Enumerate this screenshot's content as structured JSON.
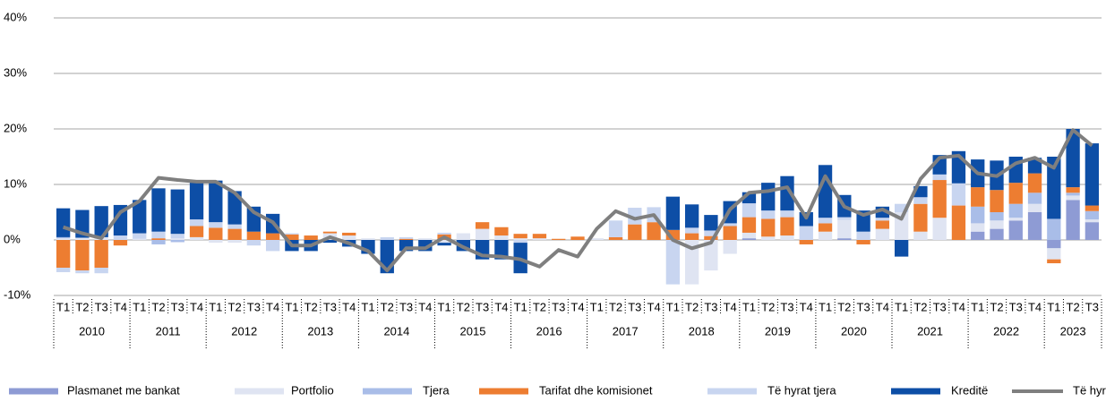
{
  "chart_data": {
    "type": "stacked_bar_line",
    "years": [
      "2010",
      "2011",
      "2012",
      "2013",
      "2014",
      "2015",
      "2016",
      "2017",
      "2018",
      "2019",
      "2020",
      "2021",
      "2022",
      "2023"
    ],
    "categories": [
      "T1",
      "T2",
      "T3",
      "T4",
      "T1",
      "T2",
      "T3",
      "T4",
      "T1",
      "T2",
      "T3",
      "T4",
      "T1",
      "T2",
      "T3",
      "T4",
      "T1",
      "T2",
      "T3",
      "T4",
      "T1",
      "T2",
      "T3",
      "T4",
      "T1",
      "T2",
      "T3",
      "T4",
      "T1",
      "T2",
      "T3",
      "T4",
      "T1",
      "T2",
      "T3",
      "T4",
      "T1",
      "T2",
      "T3",
      "T4",
      "T1",
      "T2",
      "T3",
      "T4",
      "T1",
      "T2",
      "T3",
      "T4",
      "T1",
      "T2",
      "T3",
      "T4",
      "T1",
      "T2",
      "T3"
    ],
    "ylim": [
      -10,
      40
    ],
    "yticks": [
      {
        "value": -10,
        "label": "-10%"
      },
      {
        "value": 0,
        "label": "0%"
      },
      {
        "value": 10,
        "label": "10%"
      },
      {
        "value": 20,
        "label": "20%"
      },
      {
        "value": 30,
        "label": "30%"
      },
      {
        "value": 40,
        "label": "40%"
      }
    ],
    "grid": true,
    "series": [
      {
        "name": "Plasmanet me bankat",
        "color": "#8e9bd4",
        "values": [
          0,
          0,
          0,
          0,
          0,
          0,
          0,
          0,
          0,
          0,
          0,
          0,
          0,
          0,
          0,
          0,
          0,
          0,
          0,
          0,
          0,
          0,
          0,
          0,
          0,
          0,
          0,
          0,
          0,
          0,
          0,
          0,
          0,
          0,
          0,
          0,
          0.3,
          0,
          0,
          0,
          0,
          0.3,
          0,
          0,
          0,
          0,
          0,
          0,
          1.5,
          2.0,
          3.5,
          5.0,
          -1.5,
          7.2,
          3.2
        ]
      },
      {
        "name": "Portfolio",
        "color": "#dfe4f2",
        "values": [
          0.3,
          0.4,
          0.5,
          0,
          0.2,
          0,
          0.3,
          0.5,
          -0.5,
          -0.5,
          0,
          0,
          0,
          0,
          1.2,
          0.8,
          0.3,
          0,
          0,
          0.3,
          -0.5,
          1.2,
          2.0,
          0.8,
          0.3,
          0.3,
          0,
          0,
          0.3,
          0,
          0,
          0,
          0,
          -8.0,
          -5.5,
          -2.5,
          1.0,
          0.6,
          0.8,
          0,
          1.5,
          3.3,
          0,
          2.0,
          5.0,
          1.5,
          4.0,
          0,
          1.5,
          1.5,
          0.5,
          1.5,
          -2.0,
          0.8,
          0.5
        ]
      },
      {
        "name": "Tjera",
        "color": "#a9bde8",
        "values": [
          0.2,
          0,
          0,
          0,
          0,
          -0.8,
          -0.4,
          0,
          0,
          0,
          0,
          0,
          0,
          0,
          0,
          0,
          0,
          0,
          0,
          0,
          0,
          0,
          0,
          0,
          0,
          0,
          0,
          0,
          0,
          0,
          0,
          0,
          0,
          0,
          0,
          0,
          0,
          0,
          0,
          0,
          0,
          0,
          0,
          0,
          0,
          0,
          0,
          0,
          3.0,
          1.5,
          2.5,
          2.0,
          3.8,
          0.5,
          1.5
        ]
      },
      {
        "name": "Tarifat dhe komisionet",
        "color": "#ed7d31",
        "values": [
          -5.0,
          -5.5,
          -5.0,
          -1.0,
          0,
          0.3,
          0,
          2.0,
          2.2,
          2.0,
          1.5,
          1.2,
          1.0,
          0.8,
          0.3,
          0.5,
          0,
          0,
          0.2,
          0,
          1.0,
          0,
          1.2,
          1.5,
          0.8,
          0.8,
          0.2,
          0.6,
          0,
          0.5,
          2.8,
          3.2,
          1.8,
          1.2,
          0.7,
          2.5,
          2.8,
          3.2,
          3.3,
          -0.8,
          1.5,
          0,
          -0.8,
          1.5,
          0,
          5.0,
          6.8,
          6.2,
          3.5,
          4.0,
          3.8,
          3.5,
          -0.7,
          1.0,
          1.0
        ]
      },
      {
        "name": "Të hyrat tjera",
        "color": "#c8d5f0",
        "values": [
          -0.8,
          -0.5,
          -1.0,
          0.8,
          1.0,
          1.2,
          0.8,
          1.2,
          1.0,
          0.8,
          -1.0,
          -2.0,
          0.2,
          0,
          0,
          0,
          0,
          0.5,
          0.3,
          0,
          0.3,
          0,
          0,
          0,
          -0.5,
          0,
          0,
          0,
          0,
          3.0,
          3.0,
          2.7,
          -8.0,
          1.0,
          1.0,
          0.5,
          2.5,
          1.5,
          1.2,
          2.5,
          1.0,
          0.5,
          1.5,
          0.5,
          1.5,
          1.2,
          1.0,
          4.0,
          0,
          0,
          0,
          0,
          0,
          0,
          0
        ]
      },
      {
        "name": "Kreditë",
        "color": "#0d4ea6",
        "values": [
          5.2,
          5.0,
          5.6,
          5.5,
          6.0,
          7.8,
          8.0,
          7.0,
          7.5,
          6.0,
          4.5,
          3.5,
          -2.0,
          -2.0,
          -0.5,
          -1.2,
          -2.5,
          -6.0,
          -2.0,
          -2.0,
          -0.5,
          -2.0,
          -3.5,
          -3.5,
          -5.5,
          0,
          0,
          0,
          0,
          0,
          0,
          0,
          6.0,
          4.2,
          2.8,
          4.0,
          2.0,
          5.0,
          6.2,
          2.5,
          9.5,
          4.0,
          3.8,
          2.0,
          -3.0,
          2.0,
          3.5,
          5.8,
          5.0,
          5.3,
          4.7,
          2.8,
          11.2,
          10.5,
          11.2
        ]
      }
    ],
    "line": {
      "name": "Të hyrat",
      "color": "#7f7f7f",
      "values": [
        2.3,
        1.2,
        0.3,
        5.0,
        7.0,
        11.2,
        10.8,
        10.5,
        10.5,
        8.5,
        5.0,
        3.2,
        -1.0,
        -1.0,
        0.5,
        -0.6,
        -2.0,
        -5.5,
        -1.5,
        -1.5,
        0.5,
        -1.3,
        -2.8,
        -3.0,
        -3.5,
        -4.8,
        -1.8,
        -3.0,
        2.0,
        5.2,
        3.8,
        4.5,
        0,
        -1.5,
        -0.5,
        5.5,
        8.5,
        8.8,
        9.5,
        4.0,
        11.5,
        6.0,
        4.5,
        5.5,
        3.8,
        11.0,
        14.8,
        15.2,
        12.0,
        11.5,
        13.8,
        14.8,
        13.0,
        19.8,
        17.0
      ]
    }
  }
}
